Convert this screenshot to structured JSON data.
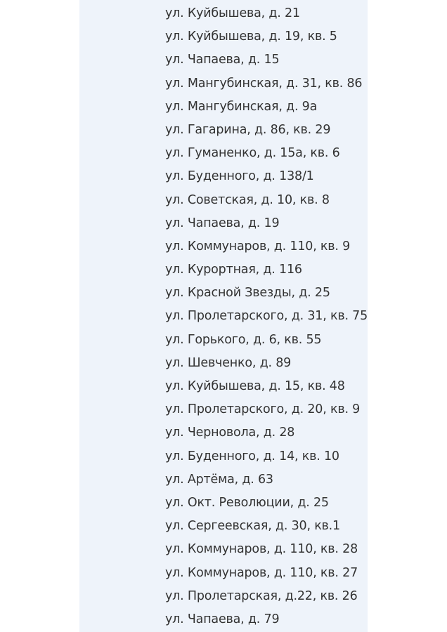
{
  "addresses": [
    "ул. Куйбышева, д. 21",
    "ул. Куйбышева, д. 19, кв. 5",
    "ул. Чапаева, д. 15",
    "ул. Мангубинская, д. 31, кв. 86",
    "ул. Мангубинская, д. 9а",
    "ул. Гагарина, д. 86, кв. 29",
    "ул. Гуманенко, д. 15а, кв. 6",
    "ул. Буденного, д. 138/1",
    "ул. Советская, д. 10, кв. 8",
    "ул. Чапаева, д. 19",
    "ул. Коммунаров, д. 110, кв. 9",
    "ул. Курортная, д. 116",
    "ул. Красной Звезды, д. 25",
    "ул. Пролетарского, д. 31, кв. 75",
    "ул. Горького, д. 6, кв. 55",
    "ул. Шевченко, д. 89",
    "ул. Куйбышева, д. 15, кв. 48",
    "ул. Пролетарского, д. 20, кв. 9",
    "ул. Черновола, д. 28",
    "ул. Буденного, д. 14, кв. 10",
    "ул. Артёма, д. 63",
    "ул. Окт. Революции, д. 25",
    "ул. Сергеевская, д. 30, кв.1",
    "ул. Коммунаров, д. 110, кв. 28",
    "ул. Коммунаров, д. 110, кв. 27",
    "ул. Пролетарская, д.22, кв. 26",
    "ул. Чапаева, д. 79"
  ]
}
